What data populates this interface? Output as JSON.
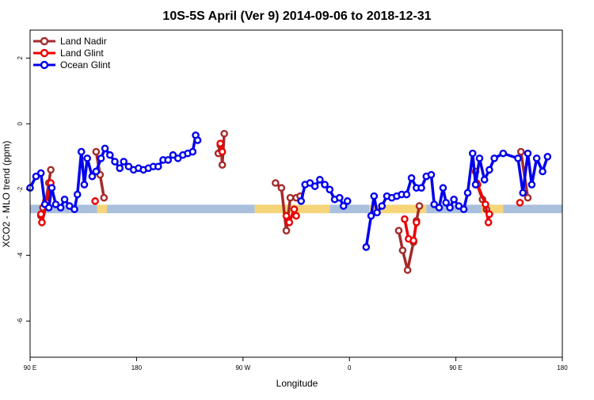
{
  "chart_data": {
    "type": "line",
    "title": "10S-5S April (Ver 9)   2014-09-06 to 2018-12-31",
    "xlabel": "Longitude",
    "ylabel": "XCO2 - MLO trend (ppm)",
    "xlim": [
      -90,
      180
    ],
    "ylim": [
      -7.1,
      2.85
    ],
    "x_ticks": [
      {
        "value": -90,
        "label": "90 E"
      },
      {
        "value": -36,
        "label": "180"
      },
      {
        "value": 18,
        "label": "90 W"
      },
      {
        "value": 72,
        "label": "0"
      },
      {
        "value": 126,
        "label": "90 E"
      },
      {
        "value": 180,
        "label": "180"
      }
    ],
    "y_ticks": [
      {
        "value": 2,
        "label": "2"
      },
      {
        "value": 0,
        "label": "0"
      },
      {
        "value": -2,
        "label": "-2"
      },
      {
        "value": -4,
        "label": "-4"
      },
      {
        "value": -6,
        "label": "-6"
      }
    ],
    "grid": false,
    "legend_position": "top-left",
    "surface_band": {
      "y_range": [
        -2.72,
        -2.46
      ],
      "segments": [
        {
          "x": [
            -90,
            -56
          ],
          "color": "#a9bfdc"
        },
        {
          "x": [
            -56,
            -51
          ],
          "color": "#f6d478"
        },
        {
          "x": [
            -51,
            24
          ],
          "color": "#a9bfdc"
        },
        {
          "x": [
            24,
            62
          ],
          "color": "#f6d478"
        },
        {
          "x": [
            62,
            82
          ],
          "color": "#a9bfdc"
        },
        {
          "x": [
            82,
            111
          ],
          "color": "#f6d478"
        },
        {
          "x": [
            111,
            139
          ],
          "color": "#a9bfdc"
        },
        {
          "x": [
            139,
            150
          ],
          "color": "#f6d478"
        },
        {
          "x": [
            150,
            180
          ],
          "color": "#a9bfdc"
        }
      ]
    },
    "series": [
      {
        "name": "Land Nadir",
        "color": "#a52a2a",
        "segments": [
          [
            [
              -79.5,
              -1.4
            ],
            [
              -80.5,
              -1.8
            ],
            [
              -82,
              -2.35
            ],
            [
              -83.5,
              -2.55
            ],
            [
              -84.5,
              -2.8
            ]
          ],
          [
            [
              -56.5,
              -0.85
            ],
            [
              -54.5,
              -1.55
            ],
            [
              -52.5,
              -2.25
            ]
          ],
          [
            [
              5.5,
              -0.9
            ],
            [
              6.5,
              -0.65
            ],
            [
              7,
              -0.8
            ],
            [
              7.5,
              -1.25
            ],
            [
              8.5,
              -0.3
            ]
          ],
          [
            [
              34.5,
              -1.8
            ],
            [
              37.5,
              -1.95
            ],
            [
              40,
              -3.25
            ],
            [
              42,
              -2.25
            ],
            [
              45,
              -2.25
            ],
            [
              47,
              -2.2
            ]
          ],
          [
            [
              97,
              -3.25
            ],
            [
              99,
              -3.85
            ],
            [
              101.5,
              -4.45
            ],
            [
              104.5,
              -3.6
            ],
            [
              106,
              -2.95
            ],
            [
              107.5,
              -2.5
            ]
          ],
          [
            [
              136,
              -1.45
            ],
            [
              136.5,
              -1.8
            ],
            [
              139.5,
              -2.3
            ],
            [
              141.5,
              -2.6
            ]
          ],
          [
            [
              159,
              -0.85
            ],
            [
              162.5,
              -2.25
            ]
          ]
        ]
      },
      {
        "name": "Land Glint",
        "color": "#ee0000",
        "segments": [
          [
            [
              -79.5,
              -1.8
            ],
            [
              -81.5,
              -2.4
            ],
            [
              -84,
              -3.0
            ],
            [
              -84.5,
              -2.75
            ]
          ],
          [
            [
              -57,
              -2.35
            ]
          ],
          [
            [
              6.5,
              -0.6
            ],
            [
              7.5,
              -0.85
            ]
          ],
          [
            [
              40,
              -2.8
            ],
            [
              41.5,
              -3.0
            ],
            [
              44,
              -2.6
            ],
            [
              45,
              -2.8
            ]
          ],
          [
            [
              100,
              -2.9
            ],
            [
              102,
              -3.5
            ],
            [
              104.5,
              -3.55
            ],
            [
              106,
              -3.0
            ]
          ],
          [
            [
              137,
              -1.85
            ],
            [
              141,
              -2.45
            ],
            [
              142.5,
              -3.0
            ],
            [
              143,
              -2.75
            ]
          ],
          [
            [
              158.5,
              -2.4
            ]
          ]
        ]
      },
      {
        "name": "Ocean Glint",
        "color": "#0000ee",
        "segments": [
          [
            [
              -90,
              -1.95
            ],
            [
              -87,
              -1.6
            ],
            [
              -84.5,
              -1.5
            ],
            [
              -82.5,
              -2.45
            ],
            [
              -80.5,
              -2.55
            ],
            [
              -79,
              -1.95
            ],
            [
              -77,
              -2.45
            ],
            [
              -74.5,
              -2.55
            ],
            [
              -72.5,
              -2.3
            ],
            [
              -70,
              -2.5
            ],
            [
              -67.5,
              -2.6
            ],
            [
              -66,
              -2.15
            ],
            [
              -64,
              -0.85
            ],
            [
              -62.5,
              -1.85
            ],
            [
              -61,
              -1.05
            ],
            [
              -58.5,
              -1.6
            ],
            [
              -56.5,
              -1.45
            ],
            [
              -54,
              -1.05
            ],
            [
              -52,
              -0.75
            ],
            [
              -49.5,
              -0.95
            ],
            [
              -47,
              -1.15
            ],
            [
              -44.5,
              -1.35
            ],
            [
              -42.5,
              -1.15
            ],
            [
              -40,
              -1.3
            ],
            [
              -37.5,
              -1.4
            ],
            [
              -35,
              -1.35
            ],
            [
              -32.5,
              -1.4
            ],
            [
              -30,
              -1.35
            ],
            [
              -27.5,
              -1.3
            ],
            [
              -25,
              -1.3
            ],
            [
              -22.5,
              -1.1
            ],
            [
              -20,
              -1.1
            ],
            [
              -17.5,
              -0.95
            ],
            [
              -15,
              -1.05
            ],
            [
              -12.5,
              -0.95
            ],
            [
              -10,
              -0.9
            ],
            [
              -7.5,
              -0.85
            ],
            [
              -6,
              -0.35
            ],
            [
              -5,
              -0.5
            ]
          ],
          [
            [
              47.5,
              -2.35
            ],
            [
              49.5,
              -1.85
            ],
            [
              52,
              -1.8
            ],
            [
              54.5,
              -1.9
            ],
            [
              57,
              -1.7
            ],
            [
              59.5,
              -1.85
            ],
            [
              62,
              -2.0
            ],
            [
              64.5,
              -2.3
            ],
            [
              67,
              -2.25
            ],
            [
              69,
              -2.5
            ],
            [
              71,
              -2.35
            ]
          ],
          [
            [
              80.5,
              -3.75
            ],
            [
              83,
              -2.8
            ],
            [
              84.5,
              -2.2
            ],
            [
              86,
              -2.7
            ],
            [
              88.5,
              -2.5
            ],
            [
              91,
              -2.2
            ],
            [
              93.5,
              -2.25
            ],
            [
              96,
              -2.2
            ],
            [
              98.5,
              -2.15
            ],
            [
              101,
              -2.15
            ],
            [
              103.5,
              -1.65
            ],
            [
              106,
              -1.95
            ],
            [
              108.5,
              -1.95
            ],
            [
              111,
              -1.6
            ],
            [
              113.5,
              -1.55
            ],
            [
              115,
              -2.45
            ],
            [
              117.5,
              -2.55
            ],
            [
              119.5,
              -1.95
            ],
            [
              121,
              -2.4
            ],
            [
              123,
              -2.55
            ],
            [
              125,
              -2.3
            ],
            [
              127.5,
              -2.5
            ],
            [
              130,
              -2.6
            ],
            [
              132,
              -2.1
            ],
            [
              134.5,
              -0.9
            ],
            [
              136,
              -1.85
            ],
            [
              138,
              -1.05
            ],
            [
              140.5,
              -1.7
            ],
            [
              143,
              -1.4
            ],
            [
              145.5,
              -1.05
            ],
            [
              150,
              -0.9
            ],
            [
              157.5,
              -1.05
            ],
            [
              160,
              -2.1
            ],
            [
              162.5,
              -0.9
            ],
            [
              164.5,
              -1.85
            ],
            [
              167,
              -1.05
            ],
            [
              170,
              -1.45
            ],
            [
              172.5,
              -1.0
            ]
          ]
        ]
      }
    ]
  }
}
